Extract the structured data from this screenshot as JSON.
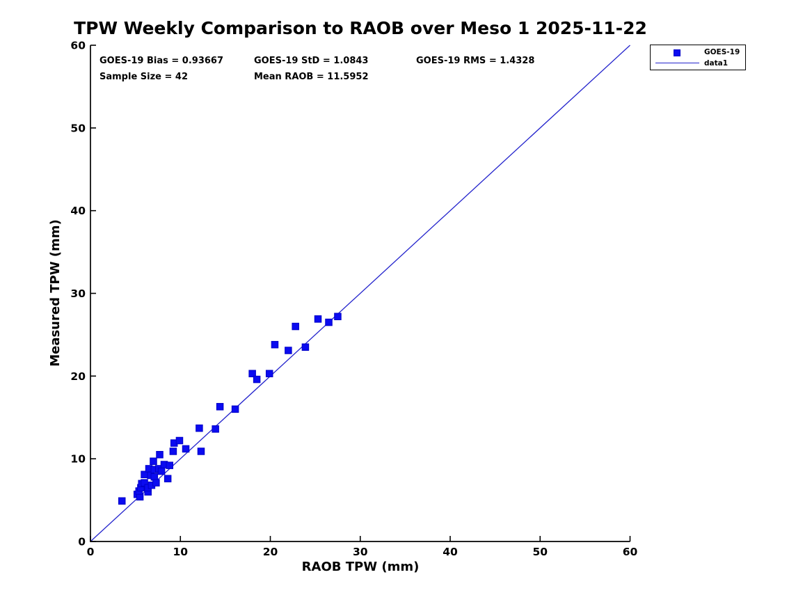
{
  "figure": {
    "title": "TPW Weekly Comparison to RAOB over Meso 1 2025-11-22",
    "stats": {
      "bias_label": "GOES-19 Bias = 0.93667",
      "std_label": "GOES-19 StD = 1.0843",
      "rms_label": "GOES-19 RMS = 1.4328",
      "sample_label": "Sample Size = 42",
      "mean_raob_label": "Mean RAOB = 11.5952"
    },
    "legend": {
      "entries": [
        {
          "label": "GOES-19",
          "symbol": "square-marker"
        },
        {
          "label": "data1",
          "symbol": "line"
        }
      ]
    },
    "colors": {
      "marker_fill": "#0b0bf0",
      "marker_edge": "#0000c8",
      "line": "#2222cc",
      "axis": "#000000",
      "text": "#000000"
    }
  },
  "chart_data": {
    "type": "scatter",
    "title": "TPW Weekly Comparison to RAOB over Meso 1 2025-11-22",
    "xlabel": "RAOB TPW (mm)",
    "ylabel": "Measured TPW (mm)",
    "xlim": [
      0,
      60
    ],
    "ylim": [
      0,
      60
    ],
    "xticks": [
      0,
      10,
      20,
      30,
      40,
      50,
      60
    ],
    "yticks": [
      0,
      10,
      20,
      30,
      40,
      50,
      60
    ],
    "grid": false,
    "legend_position": "top-right-outside",
    "stats": {
      "goes19_bias": 0.93667,
      "goes19_std": 1.0843,
      "goes19_rms": 1.4328,
      "sample_size": 42,
      "mean_raob": 11.5952
    },
    "series": [
      {
        "name": "GOES-19",
        "type": "scatter",
        "marker": "square",
        "points": [
          [
            3.5,
            4.9
          ],
          [
            5.2,
            5.7
          ],
          [
            5.5,
            5.4
          ],
          [
            5.4,
            6.1
          ],
          [
            5.6,
            6.5
          ],
          [
            5.7,
            7.0
          ],
          [
            6.0,
            7.1
          ],
          [
            6.0,
            8.1
          ],
          [
            6.4,
            6.0
          ],
          [
            6.4,
            6.5
          ],
          [
            6.5,
            8.8
          ],
          [
            6.7,
            8.0
          ],
          [
            6.8,
            6.8
          ],
          [
            7.0,
            9.7
          ],
          [
            7.1,
            7.8
          ],
          [
            7.1,
            8.7
          ],
          [
            7.3,
            7.1
          ],
          [
            7.6,
            8.8
          ],
          [
            7.7,
            10.5
          ],
          [
            7.9,
            8.5
          ],
          [
            8.2,
            9.3
          ],
          [
            8.6,
            7.6
          ],
          [
            8.8,
            9.2
          ],
          [
            9.2,
            10.9
          ],
          [
            9.3,
            11.9
          ],
          [
            9.9,
            12.2
          ],
          [
            10.6,
            11.2
          ],
          [
            12.1,
            13.7
          ],
          [
            12.3,
            10.9
          ],
          [
            13.9,
            13.6
          ],
          [
            14.4,
            16.3
          ],
          [
            16.1,
            16.0
          ],
          [
            18.0,
            20.3
          ],
          [
            18.5,
            19.6
          ],
          [
            19.9,
            20.3
          ],
          [
            20.5,
            23.8
          ],
          [
            22.0,
            23.1
          ],
          [
            22.8,
            26.0
          ],
          [
            23.9,
            23.5
          ],
          [
            25.3,
            26.9
          ],
          [
            26.5,
            26.5
          ],
          [
            27.5,
            27.2
          ]
        ]
      },
      {
        "name": "data1",
        "type": "line",
        "points": [
          [
            0,
            0
          ],
          [
            60,
            60
          ]
        ]
      }
    ]
  }
}
